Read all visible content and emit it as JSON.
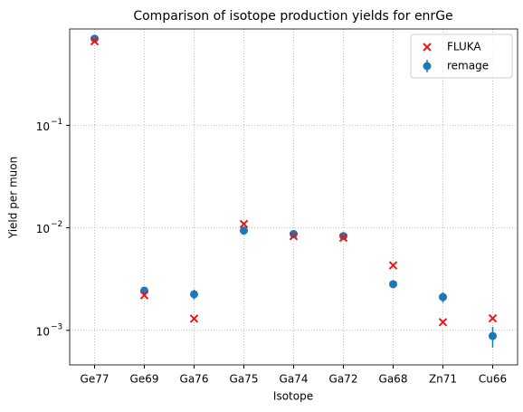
{
  "chart_data": {
    "type": "errorbar-scatter",
    "title": "Comparison of isotope production yields for enrGe",
    "x_label": "Isotope",
    "y_label": "Yield per muon",
    "categories": [
      "Ge77",
      "Ge69",
      "Ga76",
      "Ga75",
      "Ga74",
      "Ga72",
      "Ga68",
      "Zn71",
      "Cu66"
    ],
    "log_y": true,
    "grid": true,
    "legend": "upper right",
    "ylim": [
      0.00046,
      0.87
    ],
    "yticks": [
      {
        "value": 0.001,
        "label": "10",
        "exponent": "−3"
      },
      {
        "value": 0.01,
        "label": "10",
        "exponent": "−2"
      },
      {
        "value": 0.1,
        "label": "10",
        "exponent": "−1"
      }
    ],
    "series": [
      {
        "name": "FLUKA",
        "color": "#e31a1c",
        "marker": "x",
        "values": [
          0.66,
          0.0022,
          0.0013,
          0.0109,
          0.0083,
          0.008,
          0.0043,
          0.0012,
          0.00131
        ]
      },
      {
        "name": "remage",
        "color": "#1f77b4",
        "marker": "o",
        "values": [
          0.7,
          0.00244,
          0.00225,
          0.0094,
          0.0087,
          0.0083,
          0.00282,
          0.00211,
          0.00088
        ],
        "errors": [
          0.02,
          0.0002,
          0.00025,
          0.0006,
          0.0005,
          0.0005,
          0.00025,
          0.00025,
          0.0002
        ]
      }
    ]
  }
}
